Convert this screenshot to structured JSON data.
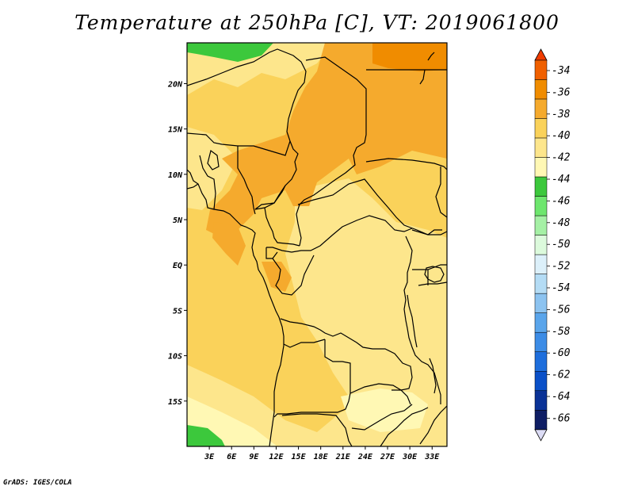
{
  "title": "Temperature at 250hPa [C], VT: 2019061800",
  "credit": "GrADS: IGES/COLA",
  "map": {
    "lon_range": [
      0,
      35
    ],
    "lat_range": [
      -20,
      24.5
    ],
    "lat_labels": [
      {
        "lat": 20,
        "text": "20N"
      },
      {
        "lat": 15,
        "text": "15N"
      },
      {
        "lat": 10,
        "text": "10N"
      },
      {
        "lat": 5,
        "text": "5N"
      },
      {
        "lat": 0,
        "text": "EQ"
      },
      {
        "lat": -5,
        "text": "5S"
      },
      {
        "lat": -10,
        "text": "10S"
      },
      {
        "lat": -15,
        "text": "15S"
      }
    ],
    "lon_labels": [
      {
        "lon": 3,
        "text": "3E"
      },
      {
        "lon": 6,
        "text": "6E"
      },
      {
        "lon": 9,
        "text": "9E"
      },
      {
        "lon": 12,
        "text": "12E"
      },
      {
        "lon": 15,
        "text": "15E"
      },
      {
        "lon": 18,
        "text": "18E"
      },
      {
        "lon": 21,
        "text": "21E"
      },
      {
        "lon": 24,
        "text": "24E"
      },
      {
        "lon": 27,
        "text": "27E"
      },
      {
        "lon": 30,
        "text": "30E"
      },
      {
        "lon": 33,
        "text": "33E"
      }
    ]
  },
  "colorbar": {
    "levels": [
      "-34",
      "-36",
      "-38",
      "-40",
      "-42",
      "-44",
      "-46",
      "-48",
      "-50",
      "-52",
      "-54",
      "-56",
      "-58",
      "-60",
      "-62",
      "-64",
      "-66"
    ],
    "colors": [
      "#f06000",
      "#f08c00",
      "#f5aa2d",
      "#fad25a",
      "#fde68c",
      "#fff8b4",
      "#3cc83c",
      "#6ee66e",
      "#a5f0a5",
      "#dcfadc",
      "#dcf0fa",
      "#b4dcf5",
      "#8cc3f0",
      "#5aa5eb",
      "#3c8ce6",
      "#1e6edc",
      "#0a50c8",
      "#0a3296",
      "#0f1e64"
    ],
    "top_color": "#f03c00",
    "bottom_color": "#dcdcf5"
  }
}
